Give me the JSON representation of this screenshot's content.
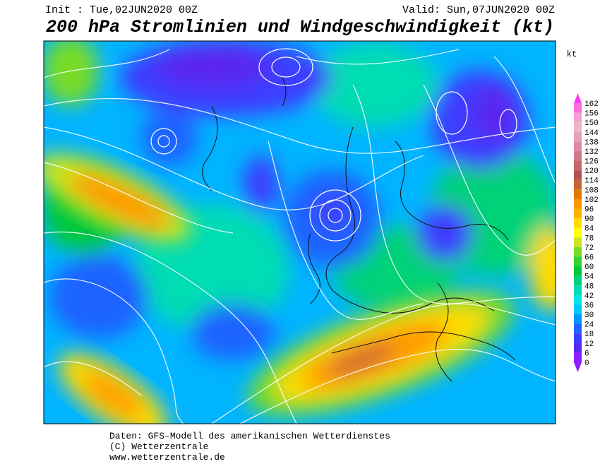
{
  "header": {
    "init": "Init : Tue,02JUN2020 00Z",
    "valid": "Valid: Sun,07JUN2020 00Z",
    "title": "200 hPa Stromlinien und Windgeschwindigkeit (kt)"
  },
  "colorbar": {
    "unit": "kt",
    "ticks": [
      0,
      6,
      12,
      18,
      24,
      30,
      36,
      42,
      48,
      54,
      60,
      66,
      72,
      78,
      84,
      90,
      96,
      102,
      108,
      114,
      120,
      126,
      132,
      138,
      144,
      150,
      156,
      162
    ],
    "colors": [
      "#8c1eff",
      "#5a28f0",
      "#3c3cff",
      "#1e64ff",
      "#0096ff",
      "#00c8ff",
      "#00e6e6",
      "#00dcb4",
      "#00d278",
      "#00c83c",
      "#32d232",
      "#78dc28",
      "#c8e61e",
      "#ffff00",
      "#ffdc00",
      "#ffb400",
      "#ff9600",
      "#e67800",
      "#c86432",
      "#b45050",
      "#c8646e",
      "#d2788c",
      "#dc8ca0",
      "#e6a0b4",
      "#f0b4c8",
      "#f5a0d2",
      "#fa6edc",
      "#ff3cf0"
    ]
  },
  "footer": {
    "lines": [
      "Daten: GFS–Modell des amerikanischen Wetterdienstes",
      "(C) Wetterzentrale",
      "www.wetterzentrale.de"
    ]
  }
}
